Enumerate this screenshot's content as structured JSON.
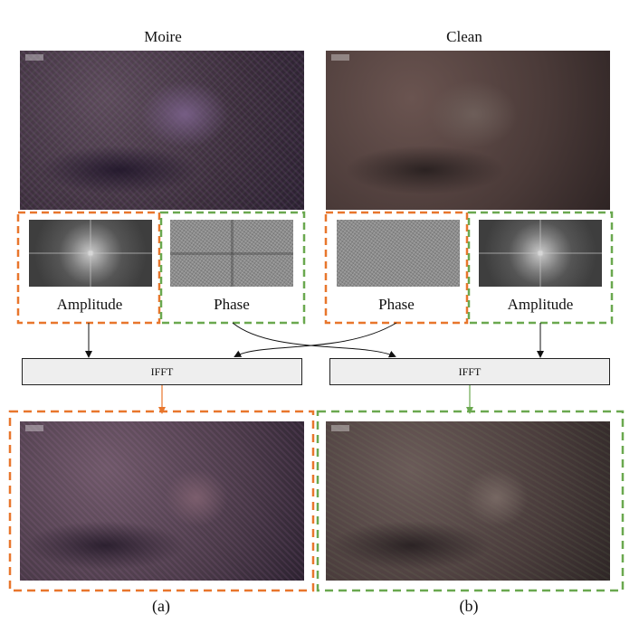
{
  "columns": {
    "left_title": "Moire",
    "right_title": "Clean"
  },
  "components": {
    "left_amplitude_label": "Amplitude",
    "left_phase_label": "Phase",
    "right_phase_label": "Phase",
    "right_amplitude_label": "Amplitude"
  },
  "operations": {
    "left_ifft": "IFFT",
    "right_ifft": "IFFT"
  },
  "panels": {
    "a": "(a)",
    "b": "(b)"
  },
  "colors": {
    "amplitude_box": "#e8762c",
    "phase_box": "#6aa84f",
    "arrow_black": "#111111"
  }
}
